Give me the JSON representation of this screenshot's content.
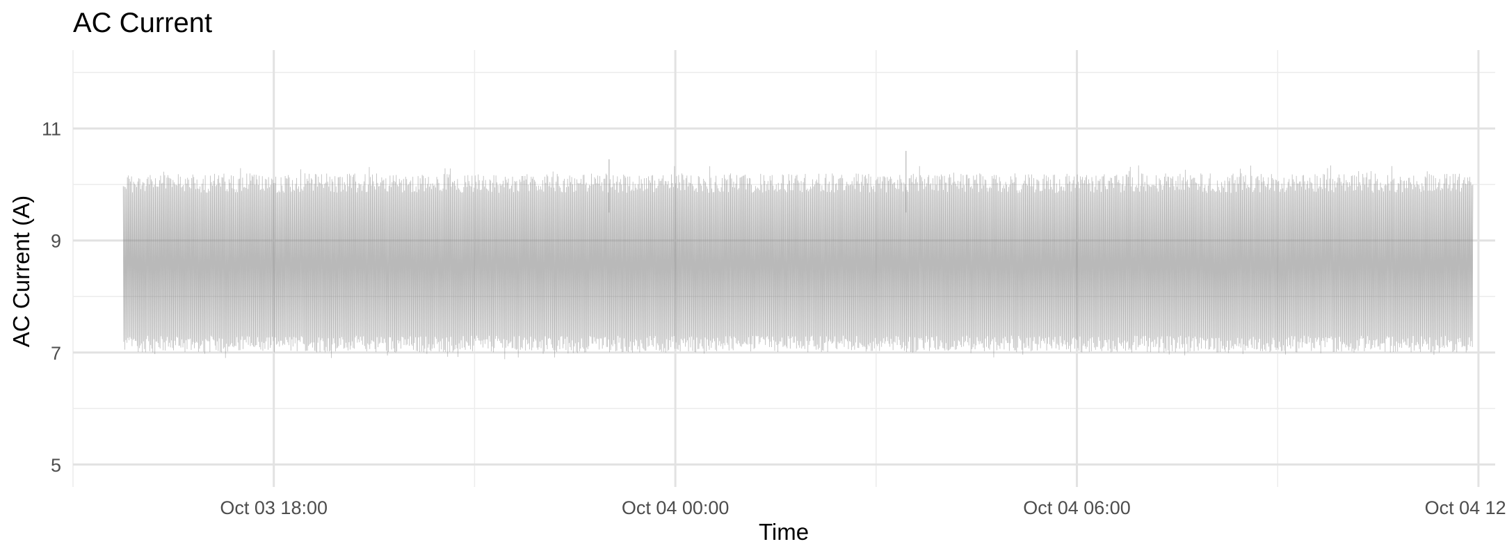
{
  "chart_data": {
    "type": "line",
    "title": "AC Current",
    "xlabel": "Time",
    "ylabel": "AC Current (A)",
    "x_tick_labels": [
      "Oct 03 18:00",
      "Oct 04 00:00",
      "Oct 04 06:00",
      "Oct 04 12:00"
    ],
    "y_tick_labels": [
      "5",
      "7",
      "9",
      "11"
    ],
    "xlim": [
      "2024-10-03T15:00",
      "2024-10-04T12:15"
    ],
    "ylim": [
      4.6,
      12.4
    ],
    "x_major_ticks": [
      "2024-10-03T18:00",
      "2024-10-04T00:00",
      "2024-10-04T06:00",
      "2024-10-04T12:00"
    ],
    "x_minor_ticks": [
      "2024-10-03T15:00",
      "2024-10-03T21:00",
      "2024-10-04T03:00",
      "2024-10-04T09:00"
    ],
    "y_major_ticks": [
      5,
      7,
      9,
      11
    ],
    "y_minor_ticks": [
      6,
      8,
      10,
      12
    ],
    "grid": true,
    "series": [
      {
        "color": "#808080",
        "x_start": "2024-10-03T15:45",
        "x_end": "2024-10-04T11:55",
        "dense_band_low": 7.0,
        "dense_band_high": 10.2,
        "values_min": 6.85,
        "values_max": 10.6
      }
    ]
  }
}
